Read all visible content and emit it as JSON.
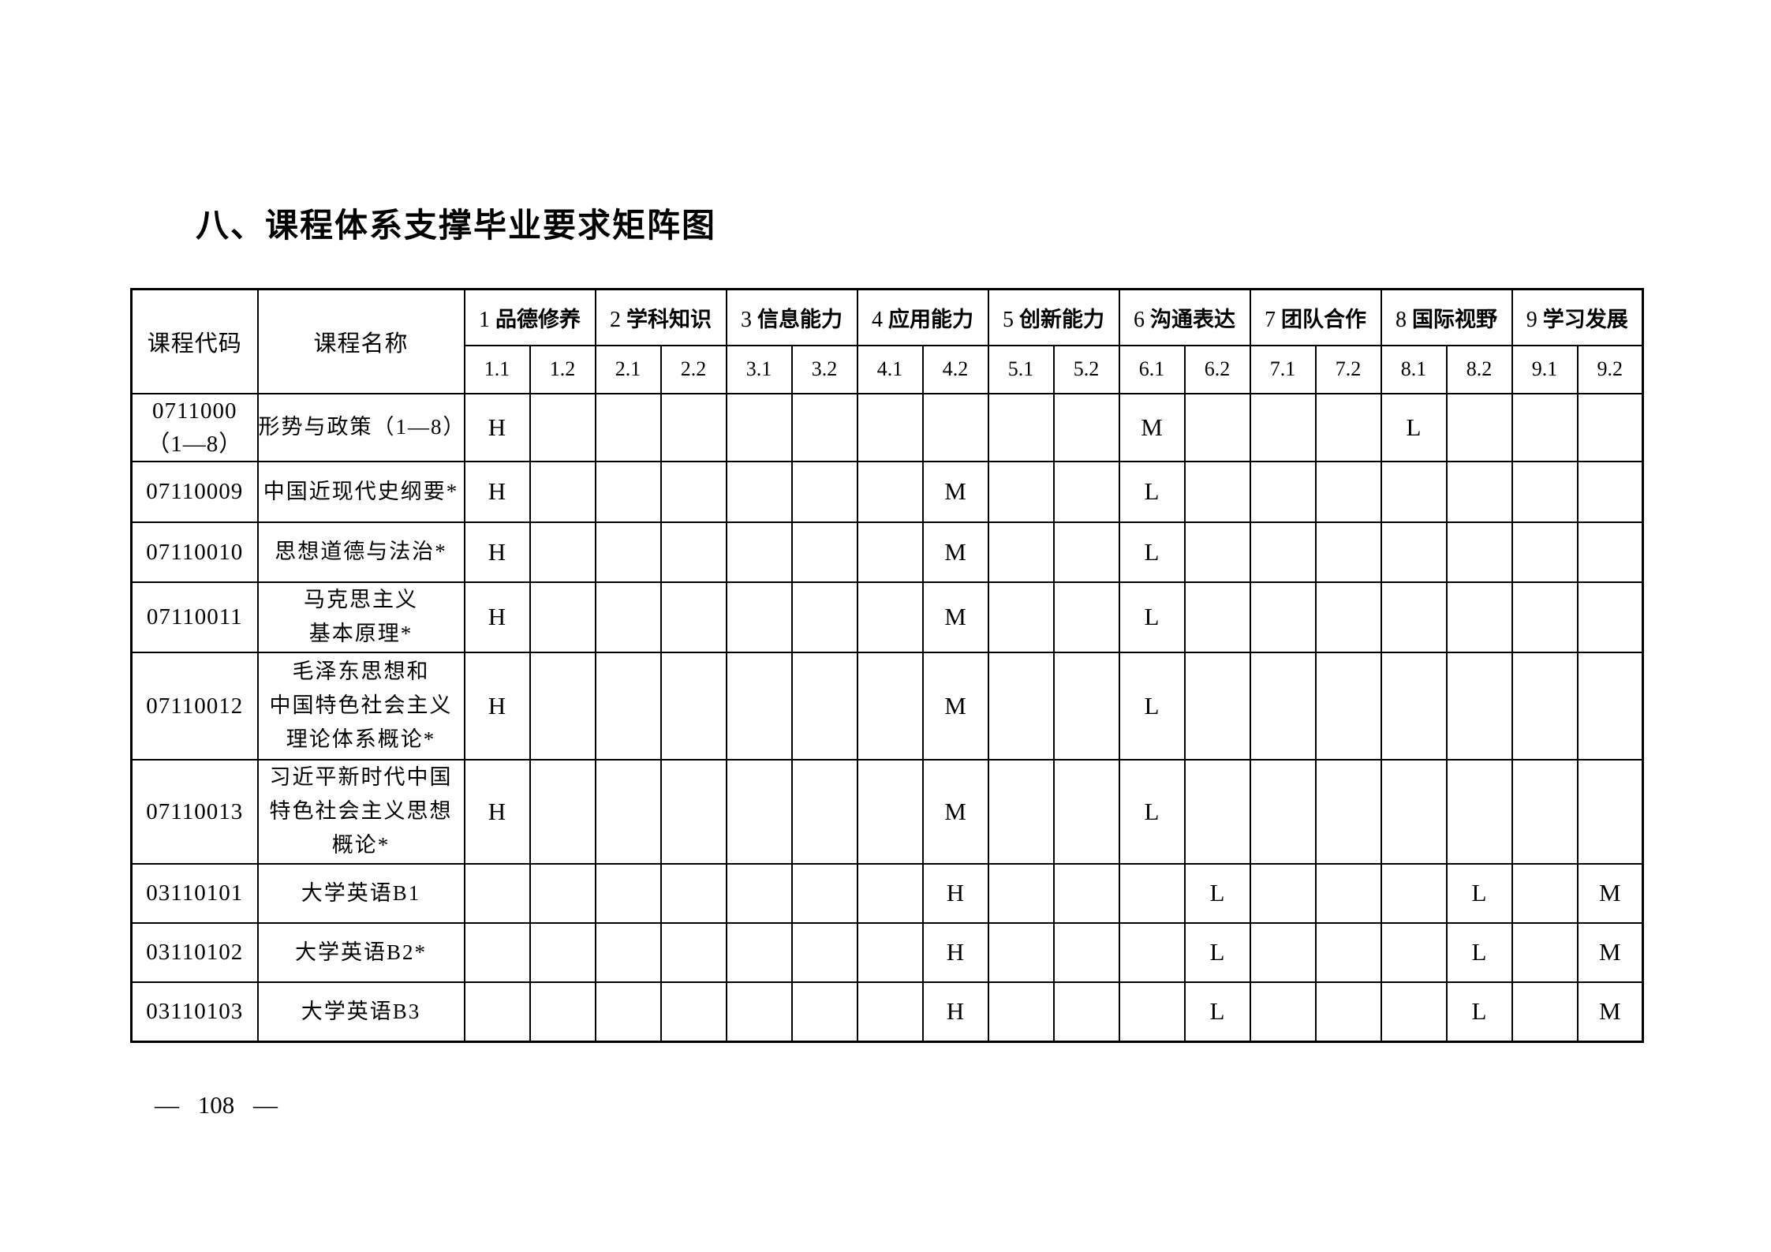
{
  "page": {
    "title": "八、课程体系支撑毕业要求矩阵图",
    "page_number": "— 108 —"
  },
  "table": {
    "code_header": "课程代码",
    "name_header": "课程名称",
    "categories": [
      {
        "num": "1",
        "label": "品德修养",
        "subs": [
          "1.1",
          "1.2"
        ]
      },
      {
        "num": "2",
        "label": "学科知识",
        "subs": [
          "2.1",
          "2.2"
        ]
      },
      {
        "num": "3",
        "label": "信息能力",
        "subs": [
          "3.1",
          "3.2"
        ]
      },
      {
        "num": "4",
        "label": "应用能力",
        "subs": [
          "4.1",
          "4.2"
        ]
      },
      {
        "num": "5",
        "label": "创新能力",
        "subs": [
          "5.1",
          "5.2"
        ]
      },
      {
        "num": "6",
        "label": "沟通表达",
        "subs": [
          "6.1",
          "6.2"
        ]
      },
      {
        "num": "7",
        "label": "团队合作",
        "subs": [
          "7.1",
          "7.2"
        ]
      },
      {
        "num": "8",
        "label": "国际视野",
        "subs": [
          "8.1",
          "8.2"
        ]
      },
      {
        "num": "9",
        "label": "学习发展",
        "subs": [
          "9.1",
          "9.2"
        ]
      }
    ],
    "rows": [
      {
        "code_lines": [
          "0711000",
          "（1—8）"
        ],
        "name_lines": [
          "形势与政策（1—8）"
        ],
        "marks": {
          "1.1": "H",
          "6.1": "M",
          "8.1": "L"
        }
      },
      {
        "code_lines": [
          "07110009"
        ],
        "name_lines": [
          "中国近现代史纲要*"
        ],
        "marks": {
          "1.1": "H",
          "4.2": "M",
          "6.1": "L"
        }
      },
      {
        "code_lines": [
          "07110010"
        ],
        "name_lines": [
          "思想道德与法治*"
        ],
        "marks": {
          "1.1": "H",
          "4.2": "M",
          "6.1": "L"
        }
      },
      {
        "code_lines": [
          "07110011"
        ],
        "name_lines": [
          "马克思主义",
          "基本原理*"
        ],
        "marks": {
          "1.1": "H",
          "4.2": "M",
          "6.1": "L"
        }
      },
      {
        "code_lines": [
          "07110012"
        ],
        "name_lines": [
          "毛泽东思想和",
          "中国特色社会主义",
          "理论体系概论*"
        ],
        "marks": {
          "1.1": "H",
          "4.2": "M",
          "6.1": "L"
        }
      },
      {
        "code_lines": [
          "07110013"
        ],
        "name_lines": [
          "习近平新时代中国",
          "特色社会主义思想",
          "概论*"
        ],
        "marks": {
          "1.1": "H",
          "4.2": "M",
          "6.1": "L"
        }
      },
      {
        "code_lines": [
          "03110101"
        ],
        "name_lines": [
          "大学英语B1"
        ],
        "marks": {
          "4.2": "H",
          "6.2": "L",
          "8.2": "L",
          "9.2": "M"
        }
      },
      {
        "code_lines": [
          "03110102"
        ],
        "name_lines": [
          "大学英语B2*"
        ],
        "marks": {
          "4.2": "H",
          "6.2": "L",
          "8.2": "L",
          "9.2": "M"
        }
      },
      {
        "code_lines": [
          "03110103"
        ],
        "name_lines": [
          "大学英语B3"
        ],
        "marks": {
          "4.2": "H",
          "6.2": "L",
          "8.2": "L",
          "9.2": "M"
        }
      }
    ]
  }
}
